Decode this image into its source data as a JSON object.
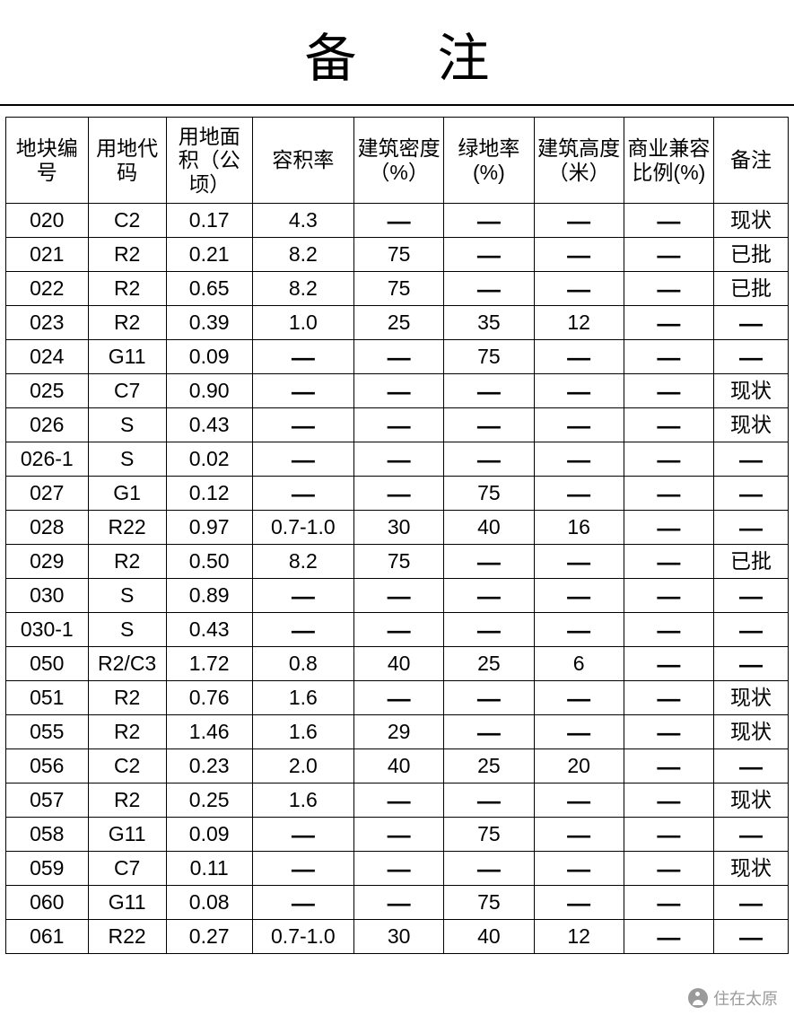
{
  "title": "备注",
  "dash": "—",
  "watermark": "住在太原",
  "table": {
    "type": "table",
    "border_color": "#000000",
    "text_color": "#000000",
    "background_color": "#ffffff",
    "header_fontsize": 23,
    "cell_fontsize": 23,
    "title_fontsize": 58,
    "columns": [
      "地块编号",
      "用地代码",
      "用地面积（公顷）",
      "容积率",
      "建筑密度（%）",
      "绿地率(%)",
      "建筑高度（米）",
      "商业兼容比例(%)",
      "备注"
    ],
    "rows": [
      [
        "020",
        "C2",
        "0.17",
        "4.3",
        "—",
        "—",
        "—",
        "—",
        "现状"
      ],
      [
        "021",
        "R2",
        "0.21",
        "8.2",
        "75",
        "—",
        "—",
        "—",
        "已批"
      ],
      [
        "022",
        "R2",
        "0.65",
        "8.2",
        "75",
        "—",
        "—",
        "—",
        "已批"
      ],
      [
        "023",
        "R2",
        "0.39",
        "1.0",
        "25",
        "35",
        "12",
        "—",
        "—"
      ],
      [
        "024",
        "G11",
        "0.09",
        "—",
        "—",
        "75",
        "—",
        "—",
        "—"
      ],
      [
        "025",
        "C7",
        "0.90",
        "—",
        "—",
        "—",
        "—",
        "—",
        "现状"
      ],
      [
        "026",
        "S",
        "0.43",
        "—",
        "—",
        "—",
        "—",
        "—",
        "现状"
      ],
      [
        "026-1",
        "S",
        "0.02",
        "—",
        "—",
        "—",
        "—",
        "—",
        "—"
      ],
      [
        "027",
        "G1",
        "0.12",
        "—",
        "—",
        "75",
        "—",
        "—",
        "—"
      ],
      [
        "028",
        "R22",
        "0.97",
        "0.7-1.0",
        "30",
        "40",
        "16",
        "—",
        "—"
      ],
      [
        "029",
        "R2",
        "0.50",
        "8.2",
        "75",
        "—",
        "—",
        "—",
        "已批"
      ],
      [
        "030",
        "S",
        "0.89",
        "—",
        "—",
        "—",
        "—",
        "—",
        "—"
      ],
      [
        "030-1",
        "S",
        "0.43",
        "—",
        "—",
        "—",
        "—",
        "—",
        "—"
      ],
      [
        "050",
        "R2/C3",
        "1.72",
        "0.8",
        "40",
        "25",
        "6",
        "—",
        "—"
      ],
      [
        "051",
        "R2",
        "0.76",
        "1.6",
        "—",
        "—",
        "—",
        "—",
        "现状"
      ],
      [
        "055",
        "R2",
        "1.46",
        "1.6",
        "29",
        "—",
        "—",
        "—",
        "现状"
      ],
      [
        "056",
        "C2",
        "0.23",
        "2.0",
        "40",
        "25",
        "20",
        "—",
        "—"
      ],
      [
        "057",
        "R2",
        "0.25",
        "1.6",
        "—",
        "—",
        "—",
        "—",
        "现状"
      ],
      [
        "058",
        "G11",
        "0.09",
        "—",
        "—",
        "75",
        "—",
        "—",
        "—"
      ],
      [
        "059",
        "C7",
        "0.11",
        "—",
        "—",
        "—",
        "—",
        "—",
        "现状"
      ],
      [
        "060",
        "G11",
        "0.08",
        "—",
        "—",
        "75",
        "—",
        "—",
        "—"
      ],
      [
        "061",
        "R22",
        "0.27",
        "0.7-1.0",
        "30",
        "40",
        "12",
        "—",
        "—"
      ]
    ]
  }
}
